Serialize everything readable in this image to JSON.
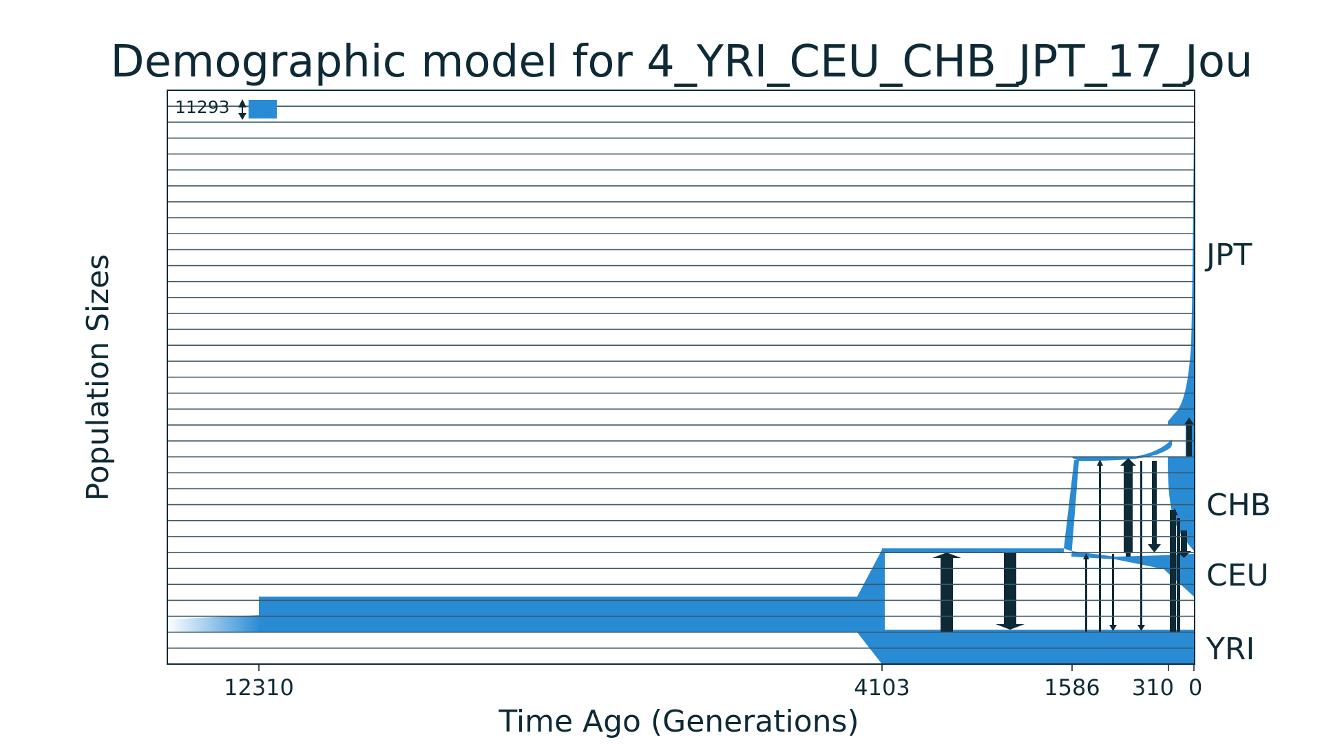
{
  "title": "Demographic model for 4_YRI_CEU_CHB_JPT_17_Jou",
  "colors": {
    "fill": "#2a8bd5",
    "line": "#0e2a36",
    "grid": "#3b5866",
    "background": "#ffffff"
  },
  "chart_data": {
    "type": "demographic-model",
    "xlabel": "Time Ago (Generations)",
    "ylabel": "Population Sizes",
    "x_direction": "time runs right-to-left (present at right edge)",
    "x_ticks": [
      12310,
      4103,
      1586,
      310,
      0
    ],
    "x_tick_labels": [
      "12310",
      "4103",
      "1586",
      "310",
      "0"
    ],
    "scale_bar_label": "11293",
    "populations": [
      {
        "name": "YRI"
      },
      {
        "name": "CEU"
      },
      {
        "name": "CHB"
      },
      {
        "name": "JPT"
      }
    ],
    "events": [
      {
        "type": "ancestral size change",
        "time": 12310
      },
      {
        "type": "split",
        "time": 4103,
        "from": "YRI",
        "to": "CEU"
      },
      {
        "type": "split",
        "time": 1586,
        "from": "CEU",
        "to": "CHB"
      },
      {
        "type": "split",
        "time": 310,
        "from": "CHB",
        "to": "JPT"
      }
    ],
    "grid": true,
    "legend": "none"
  }
}
